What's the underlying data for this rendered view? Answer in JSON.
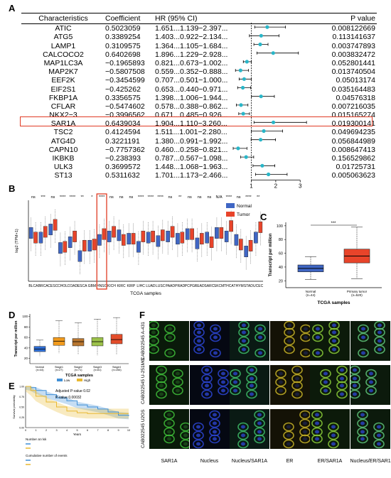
{
  "panels": {
    "a": "A",
    "b": "B",
    "c": "C",
    "d": "D",
    "e": "E",
    "f": "F"
  },
  "forest": {
    "headers": [
      "Characteristics",
      "Coefficient",
      "HR (95% CI)",
      "",
      "P value"
    ],
    "rows": [
      {
        "gene": "ATIC",
        "coef": "0.5023059",
        "hr": "1.651...1.139−2.397...",
        "p": "0.008122669",
        "h": 1.651,
        "lo": 1.139,
        "hi": 2.397
      },
      {
        "gene": "ATG5",
        "coef": "0.3389254",
        "hr": "1.403...0.922−2.134...",
        "p": "0.113141637",
        "h": 1.403,
        "lo": 0.922,
        "hi": 2.134
      },
      {
        "gene": "LAMP1",
        "coef": "0.3109575",
        "hr": "1.364...1.105−1.684...",
        "p": "0.003747893",
        "h": 1.364,
        "lo": 1.105,
        "hi": 1.684
      },
      {
        "gene": "CALCOCO2",
        "coef": "0.6402698",
        "hr": "1.896...1.229−2.928...",
        "p": "0.003832472",
        "h": 1.896,
        "lo": 1.229,
        "hi": 2.928
      },
      {
        "gene": "MAP1LC3A",
        "coef": "−0.1965893",
        "hr": "0.821...0.673−1.002...",
        "p": "0.052801441",
        "h": 0.821,
        "lo": 0.673,
        "hi": 1.002
      },
      {
        "gene": "MAP2K7",
        "coef": "−0.5807508",
        "hr": "0.559...0.352−0.888...",
        "p": "0.013740504",
        "h": 0.559,
        "lo": 0.352,
        "hi": 0.888
      },
      {
        "gene": "EEF2K",
        "coef": "−0.3454599",
        "hr": "0.707...0.501−1.000...",
        "p": "0.05013174",
        "h": 0.707,
        "lo": 0.501,
        "hi": 1.0
      },
      {
        "gene": "EIF2S1",
        "coef": "−0.425262",
        "hr": "0.653...0.440−0.971...",
        "p": "0.035164483",
        "h": 0.653,
        "lo": 0.44,
        "hi": 0.971
      },
      {
        "gene": "FKBP1A",
        "coef": "0.3356575",
        "hr": "1.398...1.006−1.944...",
        "p": "0.04576318",
        "h": 1.398,
        "lo": 1.006,
        "hi": 1.944
      },
      {
        "gene": "CFLAR",
        "coef": "−0.5474602",
        "hr": "0.578...0.388−0.862...",
        "p": "0.007216035",
        "h": 0.578,
        "lo": 0.388,
        "hi": 0.862
      },
      {
        "gene": "NKX2−3",
        "coef": "−0.3996562",
        "hr": "0.671...0.485−0.926...",
        "p": "0.015165274",
        "h": 0.671,
        "lo": 0.485,
        "hi": 0.926
      },
      {
        "gene": "SAR1A",
        "coef": "0.6439034",
        "hr": "1.904...1.110−3.260...",
        "p": "0.019300141",
        "h": 1.904,
        "lo": 1.11,
        "hi": 3.26
      },
      {
        "gene": "TSC2",
        "coef": "0.4124594",
        "hr": "1.511...1.001−2.280...",
        "p": "0.049694235",
        "h": 1.511,
        "lo": 1.001,
        "hi": 2.28
      },
      {
        "gene": "ATG4D",
        "coef": "0.3221191",
        "hr": "1.380...0.991−1.992...",
        "p": "0.056844989",
        "h": 1.38,
        "lo": 0.991,
        "hi": 1.992
      },
      {
        "gene": "CAPN10",
        "coef": "−0.7757362",
        "hr": "0.460...0.258−0.821...",
        "p": "0.008647413",
        "h": 0.46,
        "lo": 0.258,
        "hi": 0.821
      },
      {
        "gene": "IKBKB",
        "coef": "−0.238393",
        "hr": "0.787...0.567−1.098...",
        "p": "0.156529862",
        "h": 0.787,
        "lo": 0.567,
        "hi": 1.098
      },
      {
        "gene": "ULK3",
        "coef": "0.3699572",
        "hr": "1.448...1.068−1.963...",
        "p": "0.01725731",
        "h": 1.448,
        "lo": 1.068,
        "hi": 1.963
      },
      {
        "gene": "ST13",
        "coef": "0.5311632",
        "hr": "1.701...1.173−2.466...",
        "p": "0.005063623",
        "h": 1.701,
        "lo": 1.173,
        "hi": 2.466
      }
    ],
    "ticks": [
      "1",
      "2",
      "3"
    ],
    "dot_color": "#29b6c8"
  },
  "pan_cancer": {
    "ylabel": "log2 (TPM+1)",
    "xlabel": "TCGA samples",
    "legend": [
      "Normal",
      "Tumor"
    ],
    "colors": {
      "normal": "#3f66c4",
      "tumor": "#e8442a"
    },
    "cancers": [
      "BLCA",
      "BRCA",
      "CESC",
      "CHOL",
      "COAD",
      "ESCA",
      "GBM",
      "HNSC",
      "KICH",
      "KIRC",
      "KIRP",
      "LIHC",
      "LUAD",
      "LUSC",
      "PAAD",
      "PRAD",
      "PCPG",
      "READ",
      "SARC",
      "SKCM",
      "THCA",
      "THYM",
      "STAD",
      "UCEC"
    ],
    "sig": [
      "ns",
      "***",
      "ns",
      "****",
      "****",
      "**",
      "*",
      "****",
      "ns",
      "ns",
      "ns",
      "****",
      "****",
      "****",
      "ns",
      "**",
      "ns",
      "ns",
      "ns",
      "N/A",
      "****",
      "ns",
      "****",
      "**"
    ]
  },
  "panel_c": {
    "ylabel": "Transcript per million",
    "xlabel": "TCGA samples",
    "groups": [
      "Normal\n(n=44)",
      "Primary tumor\n(n=520)"
    ],
    "sig": "***",
    "yticks": [
      "20",
      "40",
      "60",
      "80",
      "100"
    ]
  },
  "panel_d": {
    "ylabel": "Transcript per million",
    "xlabel": "TCGA samples",
    "groups": [
      "Normal\n(n=44)",
      "Stage1\n(n=27)",
      "Stage2\n(n=71)",
      "Stage3\n(n=81)",
      "Stage4\n(n=266)"
    ],
    "colors": [
      "#2f6fd6",
      "#f29b1d",
      "#b8762f",
      "#9cc24a",
      "#e34d2b"
    ],
    "legend": [
      "Low",
      "High"
    ],
    "yticks": [
      "20",
      "40",
      "60",
      "80",
      "100"
    ]
  },
  "panel_e": {
    "adjusted": "Adjusted P-value 0.02",
    "pvalue": "P-value 0.00032",
    "xlabel": "Years",
    "ylabel": "Survival probability",
    "xticks": [
      "0",
      "1",
      "2",
      "3",
      "4",
      "5",
      "6",
      "7",
      "8",
      "9",
      "10"
    ],
    "yticks": [
      "0.00",
      "0.25",
      "0.50",
      "0.75",
      "1.00"
    ],
    "at_risk_title": "Number at risk",
    "events_title": "Cumulative number of events",
    "low_color": "#3f8fd6",
    "high_color": "#e8b830"
  },
  "panel_f": {
    "columns": [
      "SAR1A",
      "Nucleus",
      "Nucleus/SAR1A",
      "ER",
      "ER/SAR1A",
      "Nucleus/ER/SAR1A"
    ],
    "rows": [
      "CAB022545 A-431",
      "CAB022545 U-251MG",
      "CAB022545 U2OS"
    ]
  }
}
